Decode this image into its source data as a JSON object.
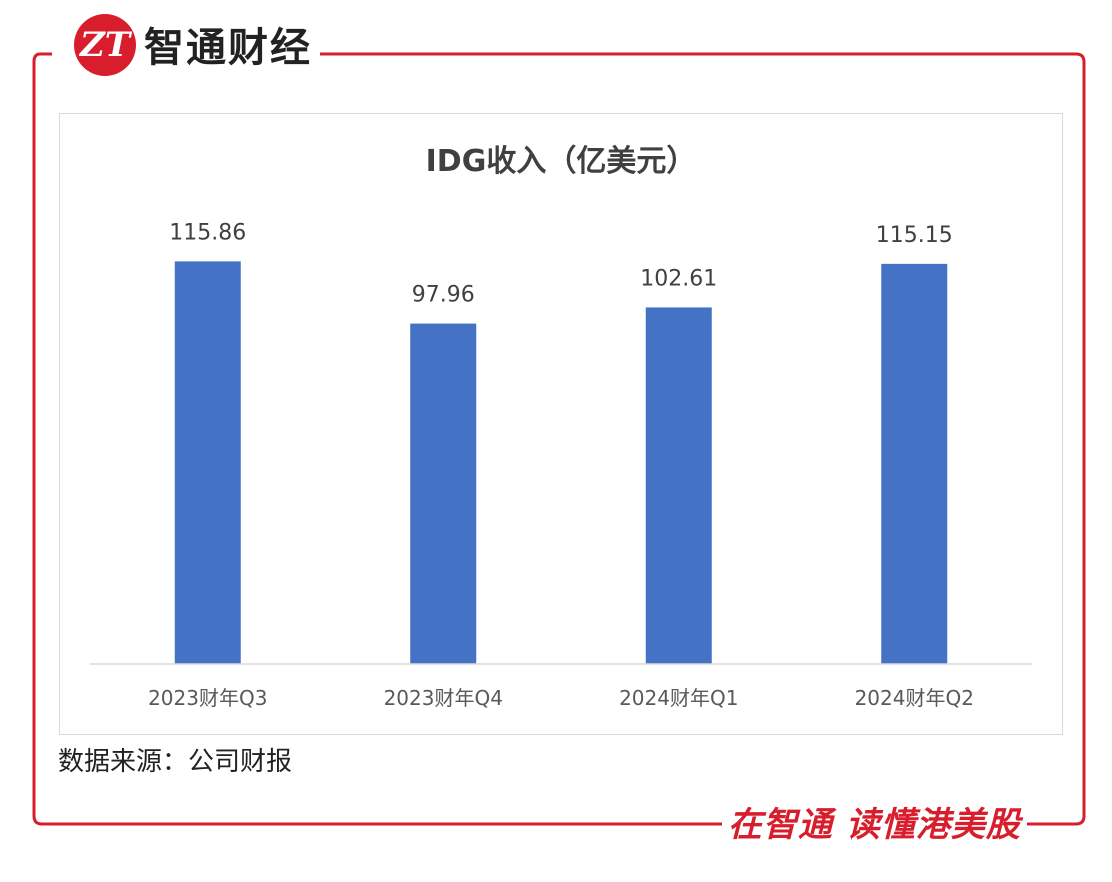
{
  "brand": {
    "name": "智通财经",
    "logo_glyph": "ZT",
    "accent_color": "#d81e2c"
  },
  "footer": {
    "source": "数据来源：公司财报",
    "slogan": "在智通  读懂港美股"
  },
  "chart_data": {
    "type": "bar",
    "title": "IDG收入（亿美元）",
    "categories": [
      "2023财年Q3",
      "2023财年Q4",
      "2024财年Q1",
      "2024财年Q2"
    ],
    "values": [
      115.86,
      97.96,
      102.61,
      115.15
    ],
    "data_labels": [
      "115.86",
      "97.96",
      "102.61",
      "115.15"
    ],
    "xlabel": "",
    "ylabel": "",
    "ylim": [
      0,
      130
    ],
    "grid": false,
    "legend": "none",
    "bar_color": "#4472c4"
  }
}
